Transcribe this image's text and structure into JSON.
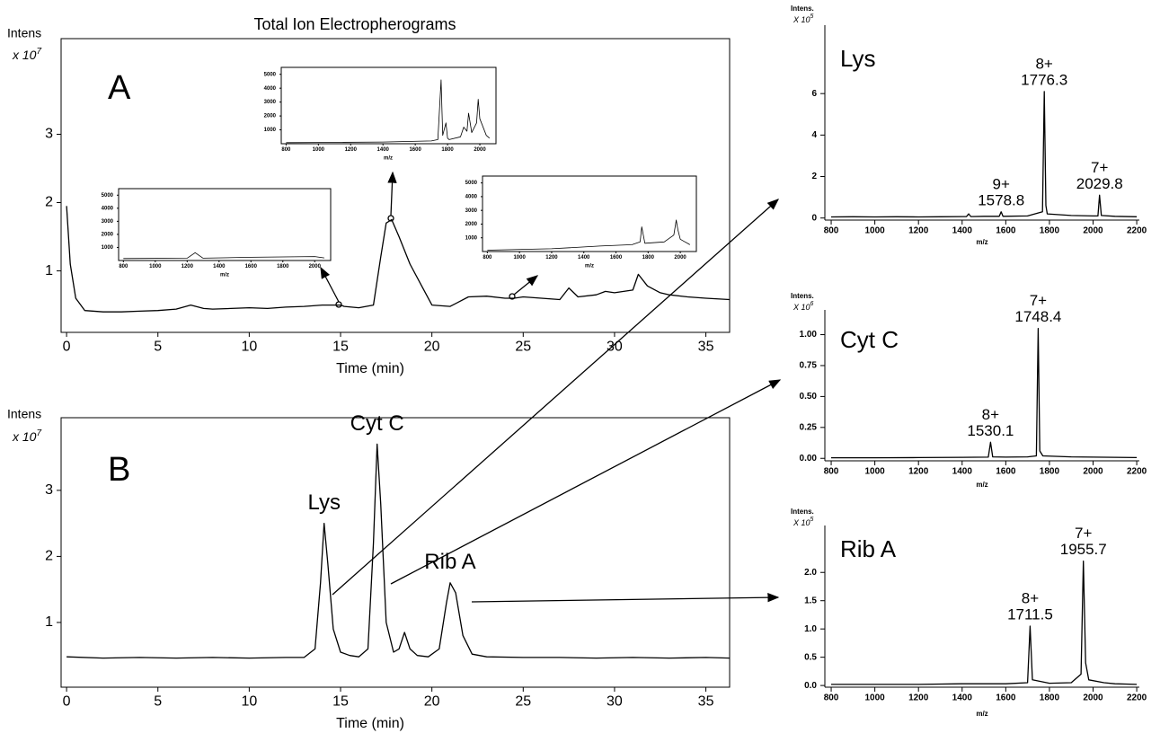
{
  "chart_data": [
    {
      "type": "line",
      "title": "Total Ion Electropherograms",
      "panel": "A",
      "ylabel": "Intens",
      "yunit": "x 10",
      "yexp": "7",
      "xlabel": "Time (min)",
      "color": "#000000",
      "xlim": [
        -0.3,
        36.3
      ],
      "ylim": [
        0.1,
        4.4
      ],
      "xticks": [
        0,
        5,
        10,
        15,
        20,
        25,
        30,
        35
      ],
      "yticks": [
        1,
        2,
        3
      ],
      "x": [
        0,
        0.2,
        0.5,
        1,
        2,
        3,
        4,
        5,
        6,
        6.8,
        7.5,
        8,
        9,
        10,
        11,
        12,
        13,
        14,
        15,
        15.2,
        16,
        16.8,
        17.2,
        17.5,
        17.8,
        18.2,
        18.8,
        19.5,
        20,
        21,
        22,
        23,
        24,
        24.5,
        25,
        26,
        27,
        27.5,
        28,
        29,
        29.5,
        30,
        31,
        31.3,
        31.8,
        32.5,
        33,
        34,
        35,
        36.3
      ],
      "values": [
        1.95,
        1.1,
        0.6,
        0.42,
        0.4,
        0.4,
        0.41,
        0.42,
        0.44,
        0.5,
        0.45,
        0.44,
        0.45,
        0.46,
        0.45,
        0.47,
        0.48,
        0.5,
        0.5,
        0.48,
        0.46,
        0.5,
        1.2,
        1.7,
        1.75,
        1.5,
        1.1,
        0.75,
        0.5,
        0.48,
        0.62,
        0.63,
        0.6,
        0.6,
        0.62,
        0.6,
        0.58,
        0.75,
        0.62,
        0.65,
        0.7,
        0.68,
        0.72,
        0.95,
        0.78,
        0.68,
        0.65,
        0.62,
        0.6,
        0.58
      ]
    },
    {
      "type": "line",
      "xlabel": "m/z",
      "color": "#000000",
      "xlim": [
        770,
        2100
      ],
      "ylim": [
        0,
        5500
      ],
      "xticks": [
        800,
        1000,
        1200,
        1400,
        1600,
        1800,
        2000
      ],
      "yticks": [
        1000,
        2000,
        3000,
        4000,
        5000
      ],
      "x": [
        800,
        1200,
        1250,
        1300,
        1600,
        2000,
        2060
      ],
      "values": [
        150,
        180,
        600,
        180,
        250,
        300,
        200
      ]
    },
    {
      "type": "line",
      "xlabel": "m/z",
      "color": "#000000",
      "xlim": [
        770,
        2100
      ],
      "ylim": [
        0,
        5500
      ],
      "xticks": [
        800,
        1000,
        1200,
        1400,
        1600,
        1800,
        2000
      ],
      "yticks": [
        1000,
        2000,
        3000,
        4000,
        5000
      ],
      "x": [
        800,
        1000,
        1400,
        1700,
        1740,
        1760,
        1770,
        1790,
        1800,
        1810,
        1880,
        1900,
        1920,
        1930,
        1950,
        1980,
        1990,
        2000,
        2040,
        2060
      ],
      "values": [
        80,
        90,
        120,
        200,
        300,
        4600,
        600,
        1500,
        400,
        300,
        500,
        1200,
        900,
        2200,
        800,
        1500,
        3200,
        1800,
        600,
        400
      ]
    },
    {
      "type": "line",
      "xlabel": "m/z",
      "color": "#000000",
      "xlim": [
        770,
        2100
      ],
      "ylim": [
        0,
        5500
      ],
      "xticks": [
        800,
        1000,
        1200,
        1400,
        1600,
        1800,
        2000
      ],
      "yticks": [
        1000,
        2000,
        3000,
        4000,
        5000
      ],
      "x": [
        800,
        1200,
        1500,
        1700,
        1750,
        1760,
        1780,
        1900,
        1960,
        1975,
        1985,
        2000,
        2060
      ],
      "values": [
        100,
        200,
        400,
        500,
        700,
        1800,
        600,
        700,
        1200,
        2300,
        1600,
        900,
        500
      ]
    },
    {
      "type": "line",
      "panel": "B",
      "ylabel": "Intens",
      "yunit": "x 10",
      "yexp": "7",
      "xlabel": "Time (min)",
      "color": "#000000",
      "xlim": [
        -0.3,
        36.3
      ],
      "ylim": [
        0.02,
        4.1
      ],
      "xticks": [
        0,
        5,
        10,
        15,
        20,
        25,
        30,
        35
      ],
      "yticks": [
        1,
        2,
        3
      ],
      "x": [
        0,
        2,
        4,
        6,
        8,
        10,
        12,
        13,
        13.6,
        13.9,
        14.1,
        14.3,
        14.6,
        15,
        15.5,
        16,
        16.5,
        16.8,
        17,
        17.2,
        17.5,
        17.9,
        18.2,
        18.5,
        18.8,
        19.2,
        19.8,
        20.4,
        20.8,
        21,
        21.3,
        21.7,
        22.2,
        23,
        25,
        27,
        29,
        31,
        33,
        35,
        36.3
      ],
      "values": [
        0.48,
        0.46,
        0.47,
        0.46,
        0.47,
        0.46,
        0.47,
        0.47,
        0.6,
        1.6,
        2.5,
        1.9,
        0.9,
        0.55,
        0.5,
        0.48,
        0.6,
        2.2,
        3.7,
        2.8,
        1.0,
        0.55,
        0.6,
        0.85,
        0.6,
        0.5,
        0.48,
        0.6,
        1.3,
        1.6,
        1.45,
        0.8,
        0.52,
        0.48,
        0.47,
        0.47,
        0.46,
        0.47,
        0.46,
        0.47,
        0.46
      ],
      "annotations": [
        {
          "text": "Lys",
          "x": 14.1
        },
        {
          "text": "Cyt C",
          "x": 17
        },
        {
          "text": "Rib A",
          "x": 21
        }
      ]
    },
    {
      "type": "spectrum",
      "panel": "Lys",
      "ylabel": "Intens.",
      "yunit": "X 10",
      "yexp": "5",
      "xlabel": "m/z",
      "color": "#000000",
      "xlim": [
        771,
        2212
      ],
      "ylim": [
        -0.1,
        9.3
      ],
      "xticks": [
        800,
        1000,
        1200,
        1400,
        1600,
        1800,
        2000,
        2200
      ],
      "yticks": [
        0,
        2,
        4,
        6
      ],
      "x": [
        800,
        900,
        1000,
        1100,
        1200,
        1300,
        1400,
        1420,
        1430,
        1440,
        1500,
        1570,
        1578.8,
        1587,
        1700,
        1768,
        1776.3,
        1784,
        1790,
        1900,
        2000,
        2022,
        2029.8,
        2038,
        2100,
        2200
      ],
      "values": [
        0.05,
        0.06,
        0.05,
        0.06,
        0.05,
        0.06,
        0.07,
        0.07,
        0.2,
        0.07,
        0.08,
        0.08,
        0.3,
        0.08,
        0.1,
        0.3,
        6.1,
        0.6,
        0.2,
        0.12,
        0.1,
        0.1,
        1.1,
        0.12,
        0.08,
        0.06
      ],
      "peaks": [
        {
          "charge": "8+",
          "mz": 1776.3
        },
        {
          "charge": "9+",
          "mz": 1578.8
        },
        {
          "charge": "7+",
          "mz": 2029.8
        }
      ]
    },
    {
      "type": "spectrum",
      "panel": "Cyt C",
      "ylabel": "Intens.",
      "yunit": "X 10",
      "yexp": "6",
      "xlabel": "m/z",
      "color": "#000000",
      "xlim": [
        771,
        2212
      ],
      "ylim": [
        -0.02,
        1.2
      ],
      "xticks": [
        800,
        1000,
        1200,
        1400,
        1600,
        1800,
        2000,
        2200
      ],
      "yticks": [
        {
          "value": 0,
          "label": "0.00"
        },
        {
          "value": 0.25,
          "label": "0.25"
        },
        {
          "value": 0.5,
          "label": "0.50"
        },
        {
          "value": 0.75,
          "label": "0.75"
        },
        {
          "value": 1,
          "label": "1.00"
        }
      ],
      "x": [
        800,
        1000,
        1200,
        1400,
        1520,
        1530.1,
        1540,
        1600,
        1700,
        1740,
        1748.4,
        1756,
        1770,
        1900,
        2000,
        2100,
        2200
      ],
      "values": [
        0.005,
        0.005,
        0.006,
        0.008,
        0.01,
        0.13,
        0.012,
        0.01,
        0.012,
        0.02,
        1.05,
        0.06,
        0.02,
        0.012,
        0.01,
        0.008,
        0.006
      ],
      "peaks": [
        {
          "charge": "7+",
          "mz": 1748.4
        },
        {
          "charge": "8+",
          "mz": 1530.1
        }
      ]
    },
    {
      "type": "spectrum",
      "panel": "Rib A",
      "ylabel": "Intens.",
      "yunit": "X 10",
      "yexp": "5",
      "xlabel": "m/z",
      "color": "#000000",
      "xlim": [
        771,
        2212
      ],
      "ylim": [
        -0.03,
        2.83
      ],
      "xticks": [
        800,
        1000,
        1200,
        1400,
        1600,
        1800,
        2000,
        2200
      ],
      "yticks": [
        {
          "value": 0,
          "label": "0.0"
        },
        0.5,
        {
          "value": 1,
          "label": "1.0"
        },
        1.5,
        {
          "value": 2,
          "label": "2.0"
        }
      ],
      "x": [
        800,
        1000,
        1200,
        1400,
        1600,
        1700,
        1711.5,
        1722,
        1800,
        1900,
        1945,
        1955.7,
        1966,
        1980,
        2050,
        2100,
        2200
      ],
      "values": [
        0.02,
        0.02,
        0.02,
        0.03,
        0.03,
        0.05,
        1.05,
        0.1,
        0.04,
        0.05,
        0.2,
        2.2,
        0.4,
        0.1,
        0.05,
        0.03,
        0.02
      ],
      "peaks": [
        {
          "charge": "7+",
          "mz": 1955.7
        },
        {
          "charge": "8+",
          "mz": 1711.5
        }
      ]
    }
  ]
}
